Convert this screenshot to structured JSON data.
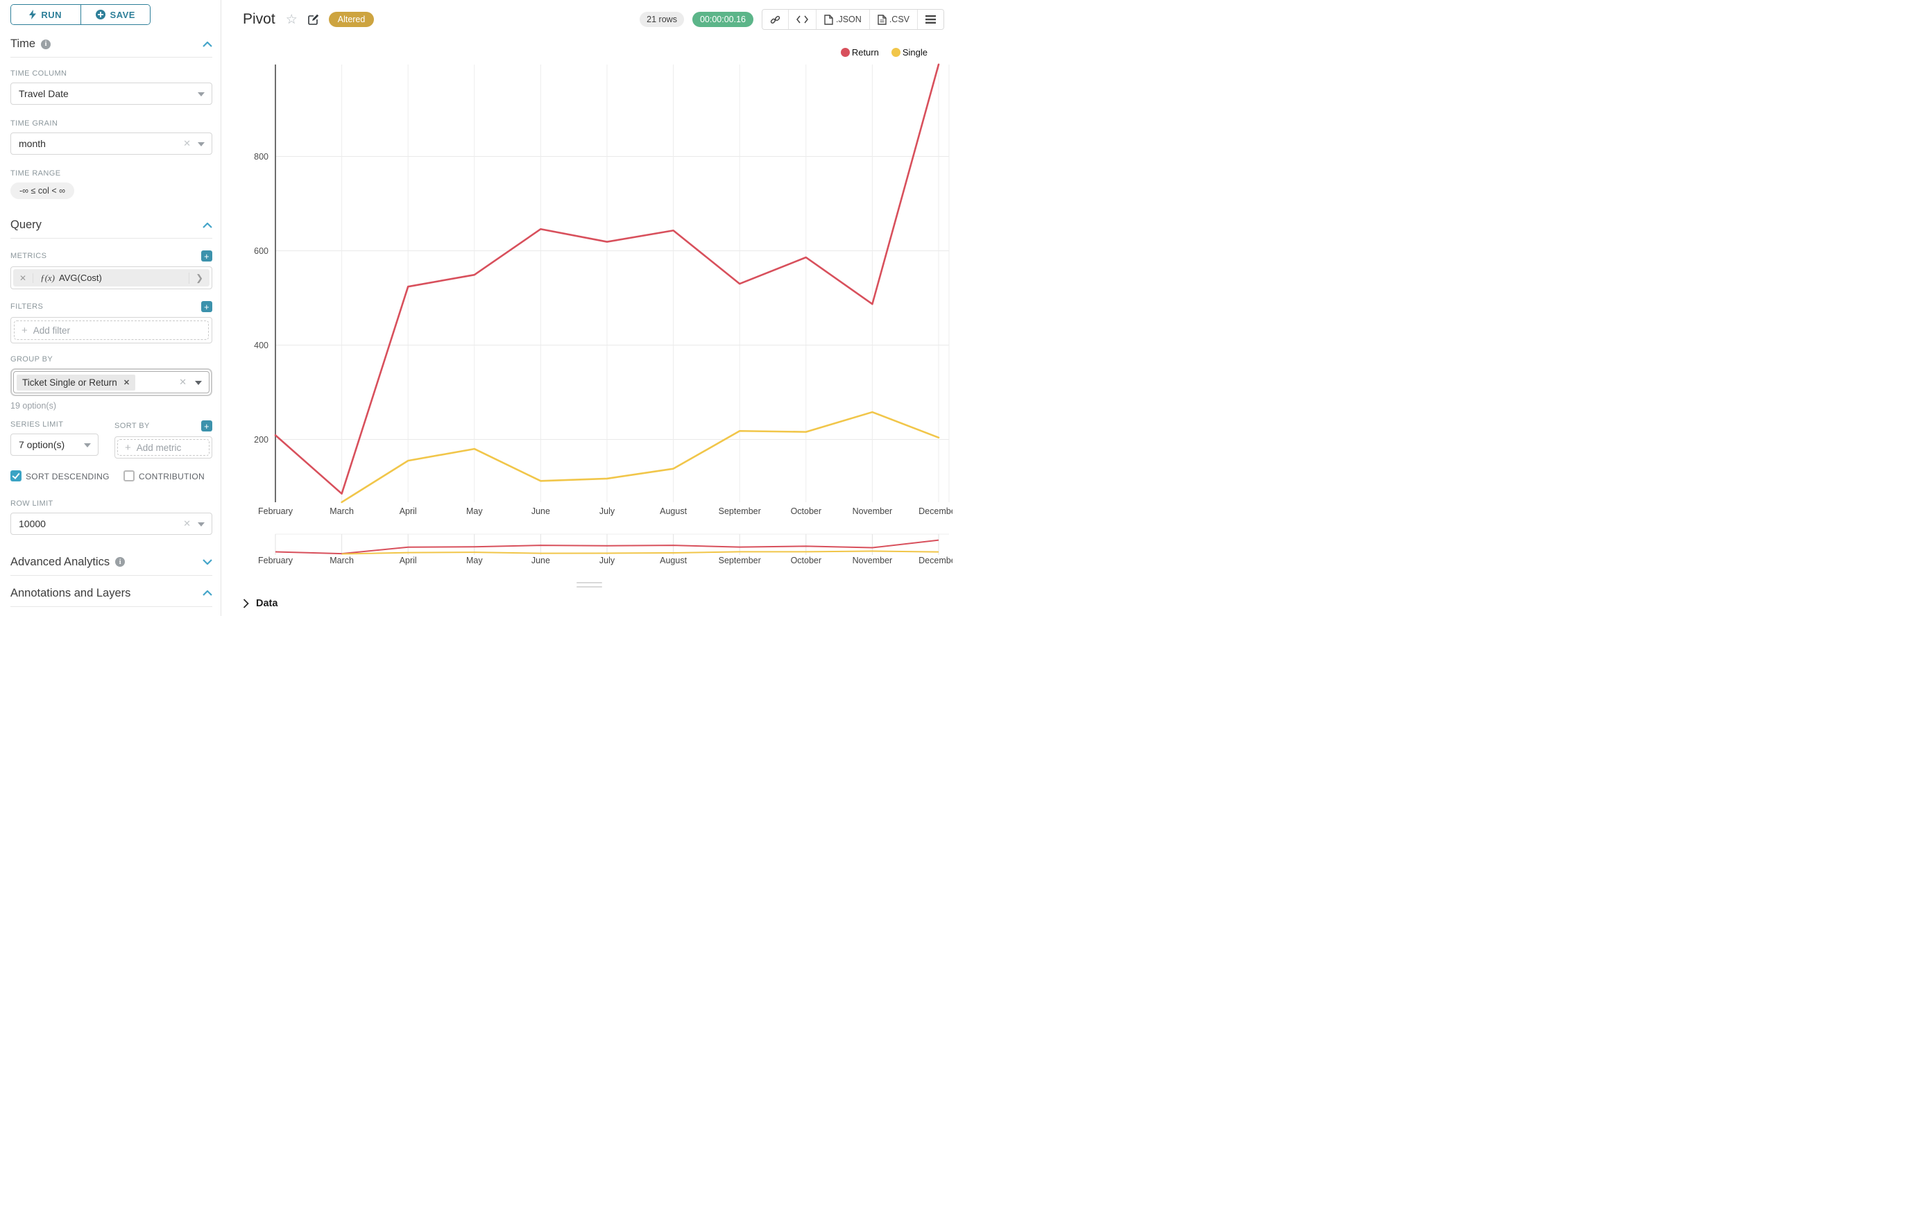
{
  "sidebar": {
    "run_label": "RUN",
    "save_label": "SAVE",
    "time": {
      "section_label": "Time",
      "column_label": "TIME COLUMN",
      "column_value": "Travel Date",
      "grain_label": "TIME GRAIN",
      "grain_value": "month",
      "range_label": "TIME RANGE",
      "range_value": "-∞ ≤ col < ∞"
    },
    "query": {
      "section_label": "Query",
      "metrics_label": "METRICS",
      "metric_fx": "ƒ(x)",
      "metric_value": "AVG(Cost)",
      "filters_label": "FILTERS",
      "add_filter_label": "Add filter",
      "groupby_label": "GROUP BY",
      "groupby_tag": "Ticket Single or Return",
      "groupby_hint": "19 option(s)",
      "series_limit_label": "SERIES LIMIT",
      "series_limit_value": "7 option(s)",
      "sort_by_label": "SORT BY",
      "add_metric_label": "Add metric",
      "sort_descending_label": "SORT DESCENDING",
      "contribution_label": "CONTRIBUTION",
      "row_limit_label": "ROW LIMIT",
      "row_limit_value": "10000"
    },
    "advanced_label": "Advanced Analytics",
    "annotations_label": "Annotations and Layers"
  },
  "header": {
    "title": "Pivot",
    "altered_badge": "Altered",
    "rows_badge": "21 rows",
    "timer_badge": "00:00:00.16",
    "json_label": ".JSON",
    "csv_label": ".CSV"
  },
  "footer": {
    "data_label": "Data"
  },
  "icons": {
    "run": "lightning-bolt",
    "save": "plus-circle",
    "code": "</>",
    "menu": "≡",
    "star": "☆"
  },
  "colors": {
    "teal_button": "#2e7f99",
    "teal_accent": "#3c92ac",
    "gold": "#cda440",
    "green": "#5cb589",
    "return_red": "#d8505c",
    "single_yellow": "#f1c64a"
  },
  "chart_data": {
    "type": "line",
    "title": "Pivot",
    "x": [
      "February",
      "March",
      "April",
      "May",
      "June",
      "July",
      "August",
      "September",
      "October",
      "November",
      "December"
    ],
    "series": [
      {
        "name": "Return",
        "color": "#d8505c",
        "values": [
          209,
          85,
          524,
          549,
          646,
          619,
          643,
          530,
          586,
          487,
          995
        ]
      },
      {
        "name": "Single",
        "color": "#f1c64a",
        "values": [
          null,
          67,
          155,
          180,
          112,
          117,
          138,
          218,
          216,
          258,
          204
        ]
      }
    ],
    "yticks": [
      200,
      400,
      600,
      800
    ],
    "ylim": [
      60,
      1010
    ],
    "grid": true,
    "legend_position": "top-right",
    "has_minimap": true,
    "metric": "AVG(Cost)"
  }
}
